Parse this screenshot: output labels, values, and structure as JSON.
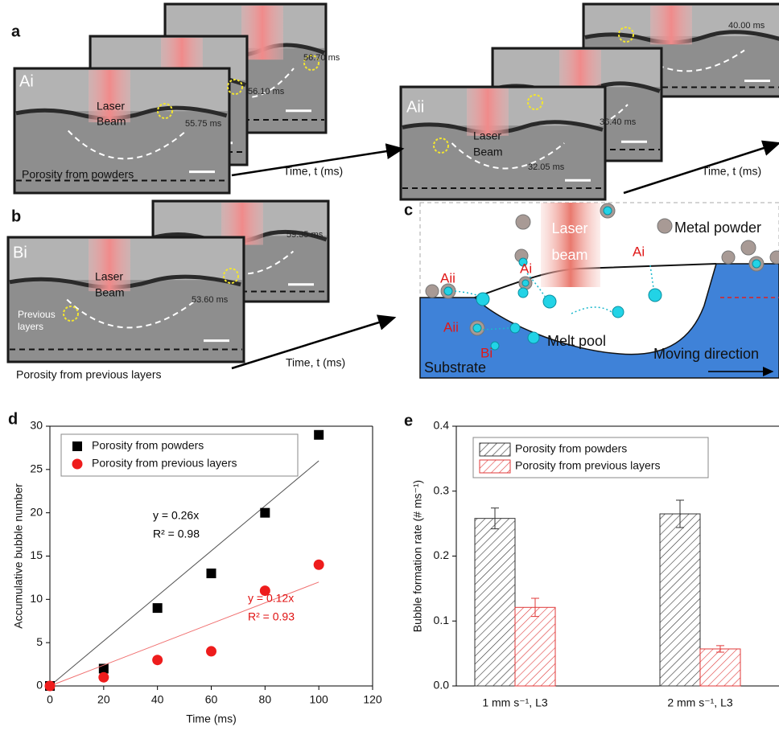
{
  "panel_labels": [
    "a",
    "b",
    "c",
    "d",
    "e"
  ],
  "panel_a": {
    "left": {
      "tag": "Ai",
      "laser_label": [
        "Laser",
        "Beam"
      ],
      "timestamps": [
        "55.75 ms",
        "56.10 ms",
        "56.70 ms"
      ],
      "caption": "Porosity from powders",
      "time_axis": "Time, t (ms)"
    },
    "right": {
      "tag": "Aii",
      "laser_label": [
        "Laser",
        "Beam"
      ],
      "timestamps": [
        "32.05 ms",
        "36.40 ms",
        "40.00 ms"
      ],
      "time_axis": "Time, t (ms)"
    }
  },
  "panel_b": {
    "tag": "Bi",
    "laser_label": [
      "Laser",
      "Beam"
    ],
    "timestamps": [
      "53.60 ms",
      "59.35 ms"
    ],
    "layer_label": [
      "Previous",
      "layers"
    ],
    "caption": "Porosity from previous layers",
    "time_axis": "Time, t (ms)"
  },
  "panel_c": {
    "laser_label": [
      "Laser",
      "beam"
    ],
    "powder_label": "Metal powder",
    "site_labels": [
      "Aii",
      "Ai",
      "Ai",
      "Aii",
      "Bi"
    ],
    "melt_pool": "Melt pool",
    "substrate": "Substrate",
    "direction": "Moving direction"
  },
  "chart_data": [
    {
      "type": "scatter",
      "xlabel": "Time (ms)",
      "ylabel": "Accumulative bubble number",
      "xlim": [
        0,
        120
      ],
      "xticks": [
        0,
        20,
        40,
        60,
        80,
        100,
        120
      ],
      "ylim": [
        0,
        30
      ],
      "yticks": [
        0,
        5,
        10,
        15,
        20,
        25,
        30
      ],
      "series": [
        {
          "name": "Porosity from powders",
          "color": "#000000",
          "marker": "square",
          "x": [
            0,
            20,
            40,
            60,
            80,
            100
          ],
          "values": [
            0,
            2,
            9,
            13,
            20,
            29
          ],
          "fit": {
            "slope": 0.26,
            "equation": "y = 0.26x",
            "r2": "R² = 0.98",
            "color": "#555555",
            "label_color": "#000000"
          }
        },
        {
          "name": "Porosity from previous layers",
          "color": "#ee1c1c",
          "marker": "circle",
          "x": [
            0,
            20,
            40,
            60,
            80,
            100
          ],
          "values": [
            0,
            1,
            3,
            4,
            11,
            14
          ],
          "fit": {
            "slope": 0.12,
            "equation": "y = 0.12x",
            "r2": "R² = 0.93",
            "color": "#f07070",
            "label_color": "#e01010"
          }
        }
      ]
    },
    {
      "type": "bar",
      "ylabel": "Bubble formation rate (# ms⁻¹)",
      "categories": [
        "1 mm s⁻¹, L3",
        "2 mm s⁻¹, L3"
      ],
      "ylim": [
        0,
        0.4
      ],
      "yticks": [
        {
          "value": 0,
          "label": "0.0"
        },
        0.1,
        0.2,
        0.3,
        0.4
      ],
      "series": [
        {
          "name": "Porosity from powders",
          "color": "#333333",
          "values": [
            0.258,
            0.265
          ],
          "errors": [
            0.016,
            0.021
          ]
        },
        {
          "name": "Porosity from previous layers",
          "color": "#e03a3a",
          "values": [
            0.121,
            0.057
          ],
          "errors": [
            0.014,
            0.005
          ]
        }
      ]
    }
  ]
}
